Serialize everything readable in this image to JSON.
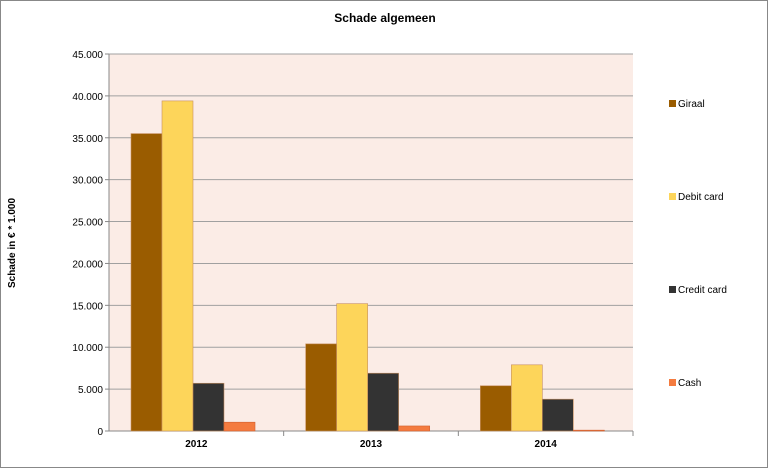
{
  "chart_data": {
    "type": "bar",
    "title": "Schade algemeen",
    "xlabel": "",
    "ylabel": "Schade in € * 1.000",
    "categories": [
      "2012",
      "2013",
      "2014"
    ],
    "series": [
      {
        "name": "Giraal",
        "color": "#9a5c00",
        "values": [
          35500,
          10400,
          5400
        ]
      },
      {
        "name": "Debit card",
        "color": "#fdd55a",
        "values": [
          39400,
          15200,
          7900
        ]
      },
      {
        "name": "Credit card",
        "color": "#333333",
        "values": [
          5700,
          6900,
          3800
        ]
      },
      {
        "name": "Cash",
        "color": "#f47b3f",
        "values": [
          1050,
          600,
          100
        ]
      }
    ],
    "ylim": [
      0,
      45000
    ],
    "yticks": [
      "0",
      "5.000",
      "10.000",
      "15.000",
      "20.000",
      "25.000",
      "30.000",
      "35.000",
      "40.000",
      "45.000"
    ],
    "grid": true,
    "legend": "right",
    "plot_background": "#fbece6"
  }
}
